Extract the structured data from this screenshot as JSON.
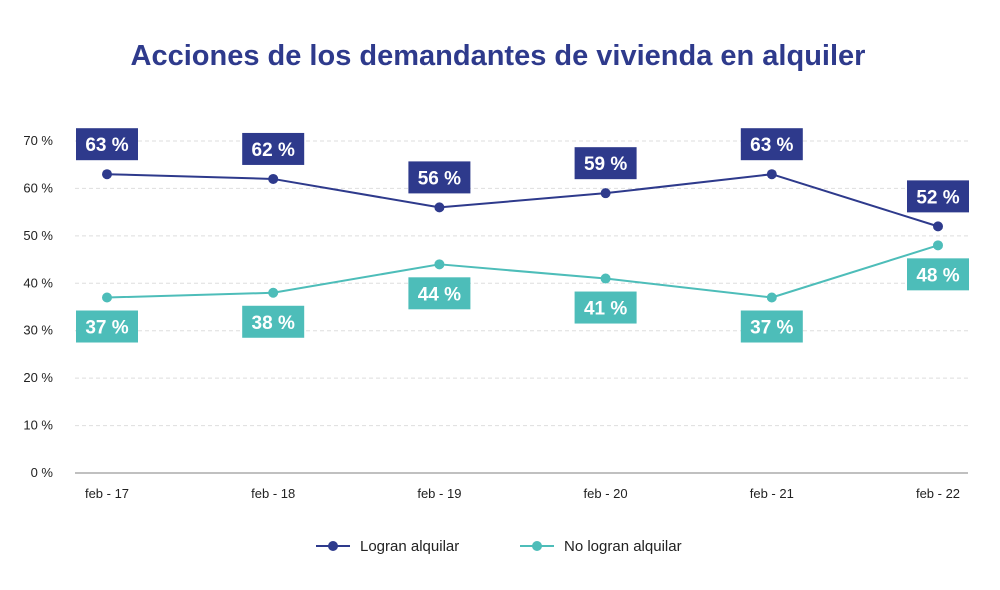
{
  "chart_data": {
    "type": "line",
    "title": "Acciones de los demandantes de vivienda en alquiler",
    "categories": [
      "feb - 17",
      "feb - 18",
      "feb - 19",
      "feb - 20",
      "feb - 21",
      "feb - 22"
    ],
    "ylim": [
      0,
      70
    ],
    "yticks": [
      0,
      10,
      20,
      30,
      40,
      50,
      60,
      70
    ],
    "ytick_suffix": " %",
    "grid": true,
    "legend_position": "bottom-center",
    "xlabel": "",
    "ylabel": "",
    "series": [
      {
        "name": "Logran alquilar",
        "values": [
          63,
          62,
          56,
          59,
          63,
          52
        ],
        "labels": [
          "63 %",
          "62 %",
          "56 %",
          "59 %",
          "63 %",
          "52 %"
        ],
        "color": "#2e3a8c",
        "label_placement": "above"
      },
      {
        "name": "No logran alquilar",
        "values": [
          37,
          38,
          44,
          41,
          37,
          48
        ],
        "labels": [
          "37 %",
          "38 %",
          "44 %",
          "41 %",
          "37 %",
          "48 %"
        ],
        "color": "#4dbdb9",
        "label_placement": "below"
      }
    ]
  },
  "colors": {
    "title": "#2e3a8c",
    "grid": "#dedede",
    "axis": "#9a9a9a"
  }
}
